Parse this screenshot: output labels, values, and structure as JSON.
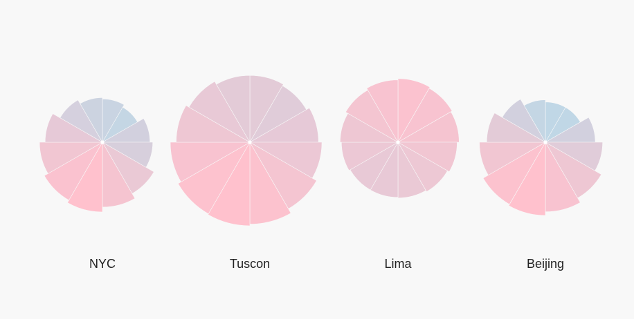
{
  "chart_data": [
    {
      "type": "polar-area",
      "label": "NYC",
      "values": [
        0.62,
        0.58,
        0.68,
        0.72,
        0.85,
        0.93,
        1.0,
        0.96,
        0.9,
        0.82,
        0.7,
        0.64
      ],
      "scale_max": 1.0
    },
    {
      "type": "polar-area",
      "label": "Tuscon",
      "values": [
        0.8,
        0.78,
        0.82,
        0.86,
        0.92,
        0.98,
        1.0,
        0.99,
        0.95,
        0.88,
        0.84,
        0.8
      ],
      "scale_max": 1.0
    },
    {
      "type": "polar-area",
      "label": "Lima",
      "values": [
        0.97,
        0.95,
        0.93,
        0.9,
        0.87,
        0.85,
        0.84,
        0.84,
        0.86,
        0.88,
        0.92,
        0.95
      ],
      "scale_max": 1.0
    },
    {
      "type": "polar-area",
      "label": "Beijing",
      "values": [
        0.55,
        0.55,
        0.68,
        0.78,
        0.88,
        0.95,
        1.0,
        0.98,
        0.9,
        0.8,
        0.68,
        0.58
      ],
      "scale_max": 1.0
    }
  ],
  "colors": {
    "cool": "#b7d2e2",
    "warm": "#ffb8c6",
    "center_dot": "#ffffff",
    "label": "#222222",
    "background": "#f8f8f8"
  }
}
